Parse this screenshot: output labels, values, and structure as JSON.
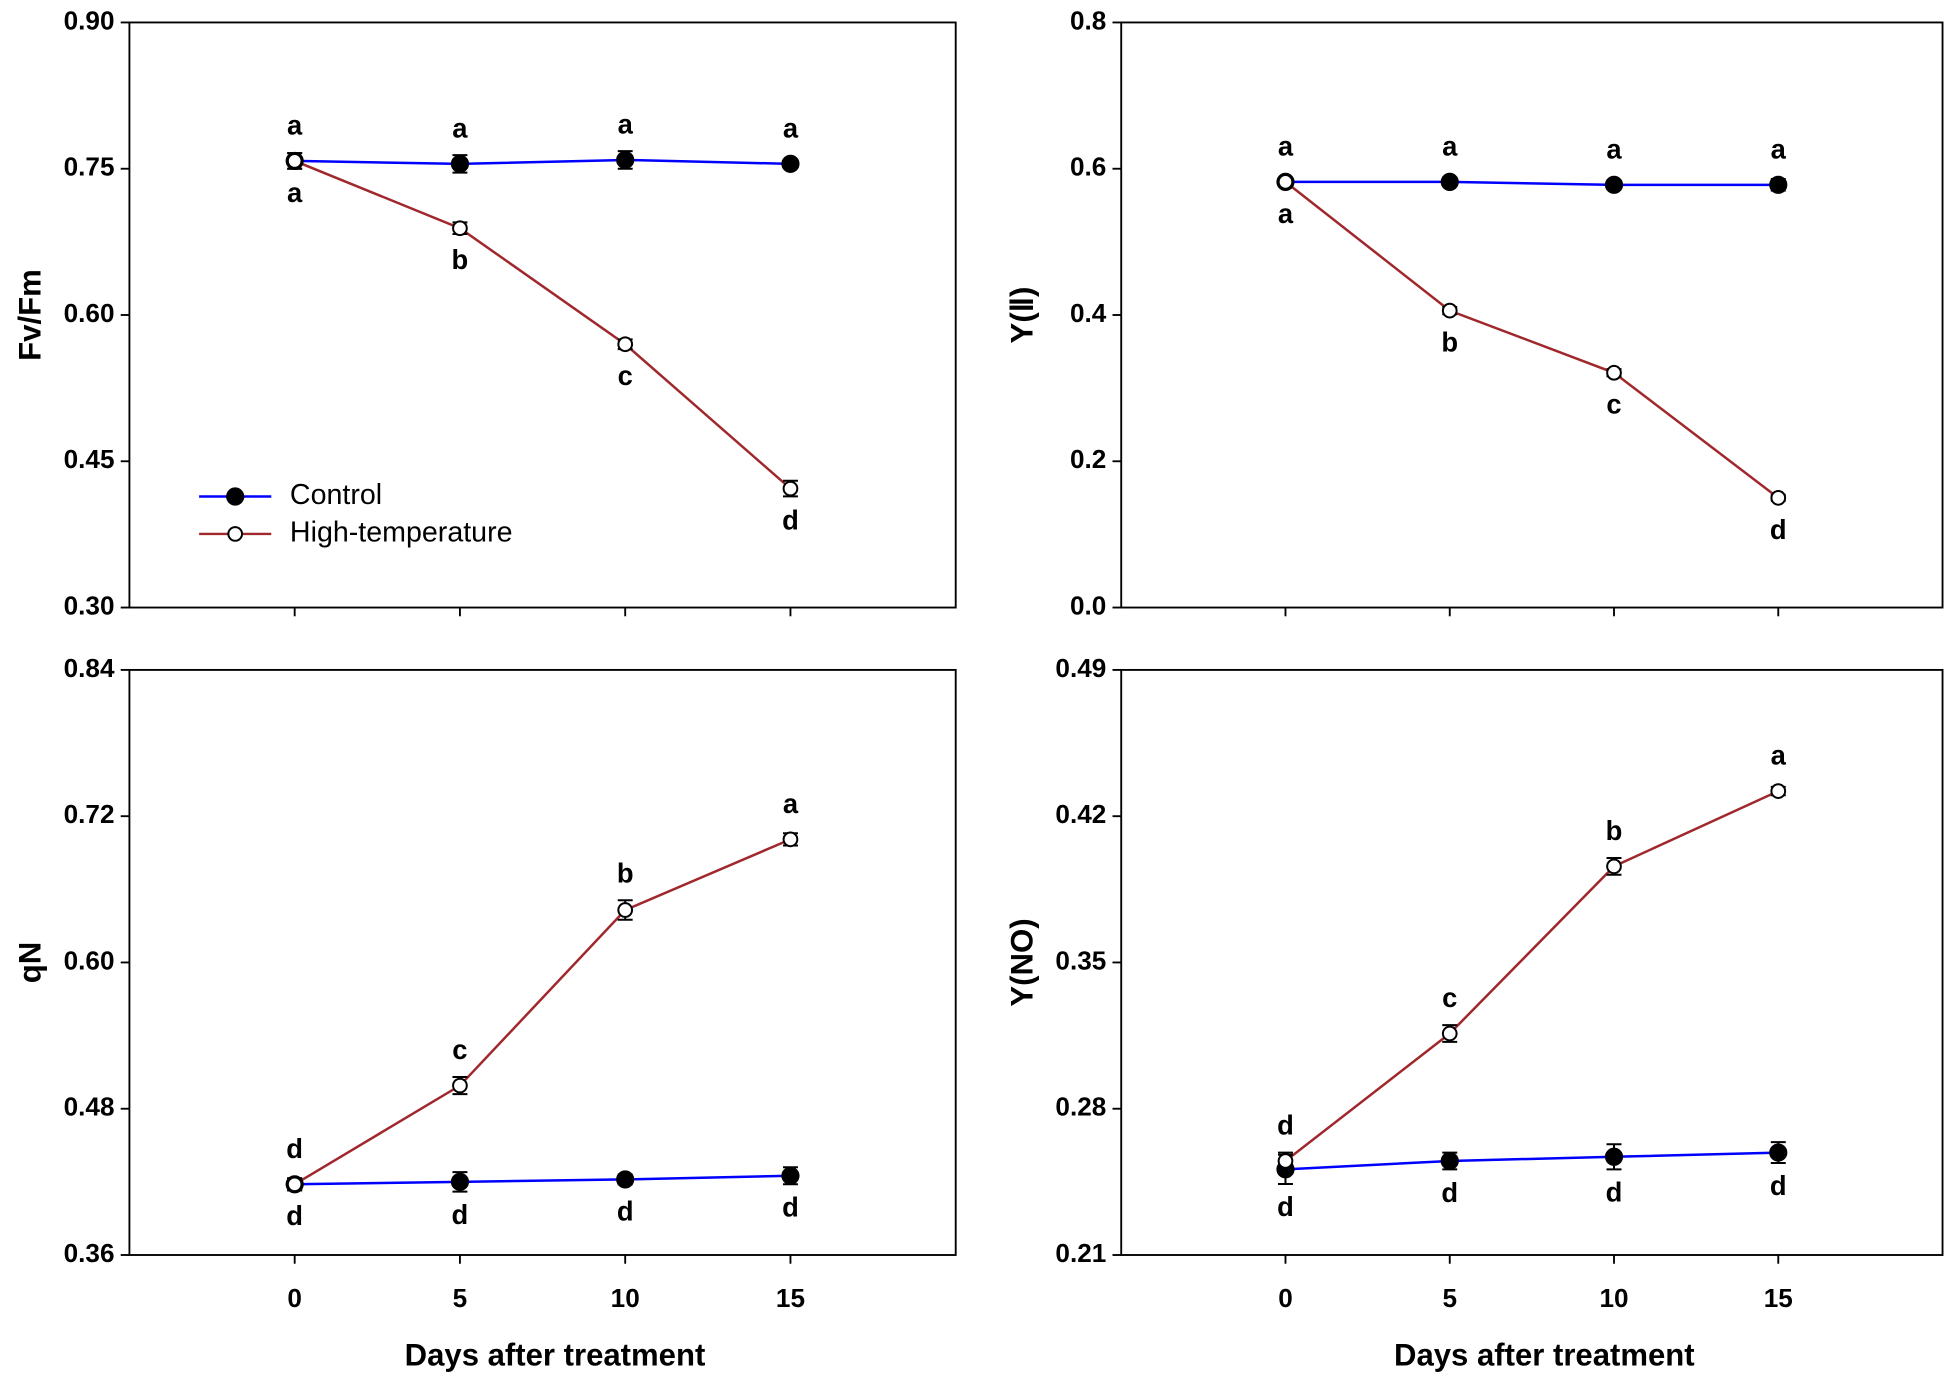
{
  "chart_data": [
    {
      "type": "line",
      "ylabel": "Fv/Fm",
      "xlim": [
        -5,
        20
      ],
      "xticks": [
        0,
        5,
        10,
        15
      ],
      "show_xtick_labels": false,
      "ylim": [
        0.3,
        0.9
      ],
      "yticks": [
        {
          "value": 0.3,
          "label": "0.30"
        },
        0.45,
        {
          "value": 0.6,
          "label": "0.60"
        },
        0.75,
        {
          "value": 0.9,
          "label": "0.90"
        }
      ],
      "legend": "lower left",
      "x": [
        0,
        5,
        10,
        15
      ],
      "series": [
        {
          "name": "Control",
          "color": "#0000ff",
          "marker": "filled",
          "values": [
            0.758,
            0.755,
            0.759,
            0.755
          ],
          "errors": [
            0.008,
            0.009,
            0.009,
            0.004
          ],
          "letters": [
            "a",
            "a",
            "a",
            "a"
          ],
          "letter_position": "above"
        },
        {
          "name": "High-temperature",
          "color": "#a0282d",
          "marker": "open",
          "values": [
            0.758,
            0.689,
            0.57,
            0.422
          ],
          "errors": [
            0.008,
            0.006,
            0.005,
            0.008
          ],
          "letters": [
            "a",
            "b",
            "c",
            "d"
          ],
          "letter_position": "below"
        }
      ]
    },
    {
      "type": "line",
      "ylabel": "Y(Ⅱ)",
      "xlim": [
        -5,
        20
      ],
      "xticks": [
        0,
        5,
        10,
        15
      ],
      "show_xtick_labels": false,
      "ylim": [
        0,
        0.8
      ],
      "yticks": [
        {
          "value": 0,
          "label": "0.0"
        },
        0.2,
        0.4,
        0.6,
        0.8
      ],
      "x": [
        0,
        5,
        10,
        15
      ],
      "series": [
        {
          "name": "Control",
          "color": "#0000ff",
          "marker": "filled",
          "values": [
            0.582,
            0.582,
            0.578,
            0.578
          ],
          "errors": [
            0.006,
            0.006,
            0.006,
            0.008
          ],
          "letters": [
            "a",
            "a",
            "a",
            "a"
          ],
          "letter_position": "above"
        },
        {
          "name": "High-temperature",
          "color": "#a0282d",
          "marker": "open",
          "values": [
            0.582,
            0.406,
            0.321,
            0.15
          ],
          "errors": [
            0.006,
            0.005,
            0.005,
            0.004
          ],
          "letters": [
            "a",
            "b",
            "c",
            "d"
          ],
          "letter_position": "below"
        }
      ]
    },
    {
      "type": "line",
      "ylabel": "qN",
      "xlabel": "Days after treatment",
      "xlim": [
        -5,
        20
      ],
      "xticks": [
        0,
        5,
        10,
        15
      ],
      "show_xtick_labels": true,
      "ylim": [
        0.36,
        0.84
      ],
      "yticks": [
        0.36,
        0.48,
        {
          "value": 0.6,
          "label": "0.60"
        },
        0.72,
        0.84
      ],
      "x": [
        0,
        5,
        10,
        15
      ],
      "series": [
        {
          "name": "Control",
          "color": "#0000ff",
          "marker": "filled",
          "values": [
            0.418,
            0.42,
            0.422,
            0.425
          ],
          "errors": [
            0.005,
            0.008,
            0.004,
            0.007
          ],
          "letters": [
            "d",
            "d",
            "d",
            "d"
          ],
          "letter_position": "below"
        },
        {
          "name": "High-temperature",
          "color": "#a0282d",
          "marker": "open",
          "values": [
            0.418,
            0.499,
            0.643,
            0.701
          ],
          "errors": [
            0.005,
            0.007,
            0.008,
            0.005
          ],
          "letters": [
            "d",
            "c",
            "b",
            "a"
          ],
          "letter_position": "above"
        }
      ]
    },
    {
      "type": "line",
      "ylabel": "Y(NO)",
      "xlabel": "Days after treatment",
      "xlim": [
        -5,
        20
      ],
      "xticks": [
        0,
        5,
        10,
        15
      ],
      "show_xtick_labels": true,
      "ylim": [
        0.21,
        0.49
      ],
      "yticks": [
        0.21,
        0.28,
        0.35,
        0.42,
        0.49
      ],
      "x": [
        0,
        5,
        10,
        15
      ],
      "series": [
        {
          "name": "Control",
          "color": "#0000ff",
          "marker": "filled",
          "values": [
            0.251,
            0.255,
            0.257,
            0.259
          ],
          "errors": [
            0.007,
            0.004,
            0.006,
            0.005
          ],
          "letters": [
            "d",
            "d",
            "d",
            "d"
          ],
          "letter_position": "below"
        },
        {
          "name": "High-temperature",
          "color": "#a0282d",
          "marker": "open",
          "values": [
            0.255,
            0.316,
            0.396,
            0.432
          ],
          "errors": [
            0.004,
            0.004,
            0.004,
            0.002
          ],
          "letters": [
            "d",
            "c",
            "b",
            "a"
          ],
          "letter_position": "above"
        }
      ]
    }
  ]
}
